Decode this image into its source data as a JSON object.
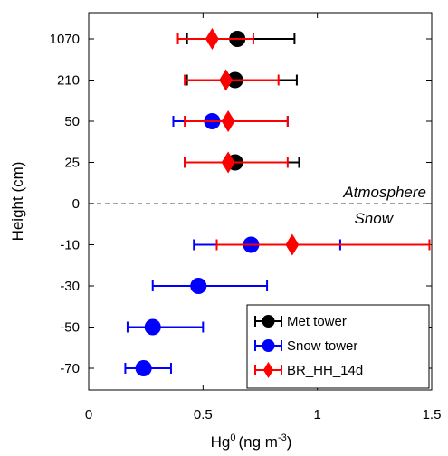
{
  "chart_data": {
    "type": "scatter",
    "orientation": "horizontal-errorbar",
    "xlabel": "Hg",
    "xlabel_superscript": "0",
    "xlabel_units_prefix": "(ng m",
    "xlabel_units_exp": "-3",
    "xlabel_units_suffix": ")",
    "ylabel": "Height (cm)",
    "xlim": [
      0,
      1.5
    ],
    "x_ticks": [
      0,
      0.5,
      1,
      1.5
    ],
    "x_tick_labels": [
      "0",
      "0.5",
      "1",
      "1.5"
    ],
    "y_categories": [
      "1070",
      "210",
      "50",
      "25",
      "0",
      "-10",
      "-30",
      "-50",
      "-70"
    ],
    "divider_category": "0",
    "annotations": {
      "above": "Atmosphere",
      "below": "Snow"
    },
    "grid": false,
    "legend_placement": "bottom-right",
    "series": [
      {
        "name": "Met tower",
        "marker": "circle",
        "color": "#000000",
        "points": [
          {
            "y": "1070",
            "x": 0.65,
            "xerr": [
              0.43,
              0.9
            ]
          },
          {
            "y": "210",
            "x": 0.64,
            "xerr": [
              0.43,
              0.91
            ]
          },
          {
            "y": "25",
            "x": 0.64,
            "xerr": [
              0.42,
              0.92
            ]
          }
        ]
      },
      {
        "name": "Snow tower",
        "marker": "circle",
        "color": "#0000ff",
        "points": [
          {
            "y": "50",
            "x": 0.54,
            "xerr": [
              0.37,
              0.87
            ]
          },
          {
            "y": "-10",
            "x": 0.71,
            "xerr": [
              0.46,
              1.1
            ]
          },
          {
            "y": "-30",
            "x": 0.48,
            "xerr": [
              0.28,
              0.78
            ]
          },
          {
            "y": "-50",
            "x": 0.28,
            "xerr": [
              0.17,
              0.5
            ]
          },
          {
            "y": "-70",
            "x": 0.24,
            "xerr": [
              0.16,
              0.36
            ]
          }
        ]
      },
      {
        "name": "BR_HH_14d",
        "marker": "diamond",
        "color": "#ff0000",
        "points": [
          {
            "y": "1070",
            "x": 0.54,
            "xerr": [
              0.39,
              0.72
            ]
          },
          {
            "y": "210",
            "x": 0.6,
            "xerr": [
              0.42,
              0.83
            ]
          },
          {
            "y": "50",
            "x": 0.61,
            "xerr": [
              0.42,
              0.87
            ]
          },
          {
            "y": "25",
            "x": 0.61,
            "xerr": [
              0.42,
              0.87
            ]
          },
          {
            "y": "-10",
            "x": 0.89,
            "xerr": [
              0.56,
              1.49
            ]
          }
        ]
      }
    ]
  }
}
